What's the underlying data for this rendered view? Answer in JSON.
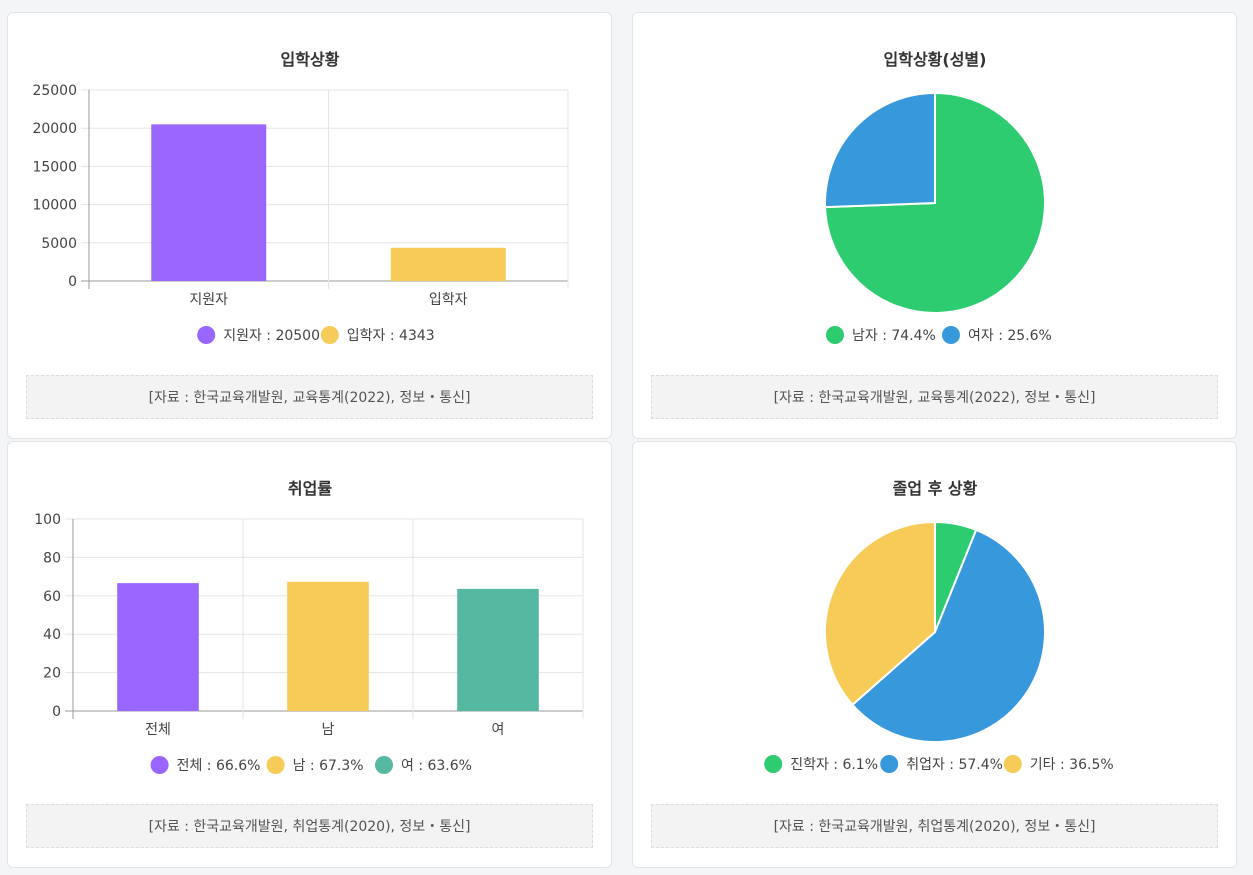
{
  "colors": {
    "purple": "#9966ff",
    "yellow": "#f7cb57",
    "teal": "#54b9a0",
    "green": "#2ecc71",
    "blue": "#3799dc",
    "grid": "#e5e5e5",
    "axis": "#999999",
    "text": "#444444"
  },
  "chart_data": [
    {
      "id": "admission",
      "type": "bar",
      "title": "입학상황",
      "categories": [
        "지원자",
        "입학자"
      ],
      "values": [
        20500,
        4343
      ],
      "bar_colors": [
        "#9966ff",
        "#f7cb57"
      ],
      "ylim": [
        0,
        25000
      ],
      "yticks": [
        "0",
        "5000",
        "10000",
        "15000",
        "20000",
        "25000"
      ],
      "legend": [
        "지원자 : 20500",
        "입학자 : 4343"
      ],
      "source": "[자료 : 한국교육개발원, 교육통계(2022), 정보・통신]"
    },
    {
      "id": "gender",
      "type": "pie",
      "title": "입학상황(성별)",
      "labels": [
        "남자",
        "여자"
      ],
      "values": [
        74.4,
        25.6
      ],
      "slice_colors": [
        "#2ecc71",
        "#3799dc"
      ],
      "legend": [
        "남자 : 74.4%",
        "여자 : 25.6%"
      ],
      "source": "[자료 : 한국교육개발원, 교육통계(2022), 정보・통신]"
    },
    {
      "id": "employ",
      "type": "bar",
      "title": "취업률",
      "categories": [
        "전체",
        "남",
        "여"
      ],
      "values": [
        66.6,
        67.3,
        63.6
      ],
      "bar_colors": [
        "#9966ff",
        "#f7cb57",
        "#54b9a0"
      ],
      "ylim": [
        0,
        100
      ],
      "yticks": [
        "0",
        "20",
        "40",
        "60",
        "80",
        "100"
      ],
      "legend": [
        "전체 : 66.6%",
        "남 : 67.3%",
        "여 : 63.6%"
      ],
      "source": "[자료 : 한국교육개발원, 취업통계(2020), 정보・통신]"
    },
    {
      "id": "after",
      "type": "pie",
      "title": "졸업 후 상황",
      "labels": [
        "진학자",
        "취업자",
        "기타"
      ],
      "values": [
        6.1,
        57.4,
        36.5
      ],
      "slice_colors": [
        "#2ecc71",
        "#3799dc",
        "#f7cb57"
      ],
      "legend": [
        "진학자 : 6.1%",
        "취업자 : 57.4%",
        "기타 : 36.5%"
      ],
      "source": "[자료 : 한국교육개발원, 취업통계(2020), 정보・통신]"
    }
  ]
}
